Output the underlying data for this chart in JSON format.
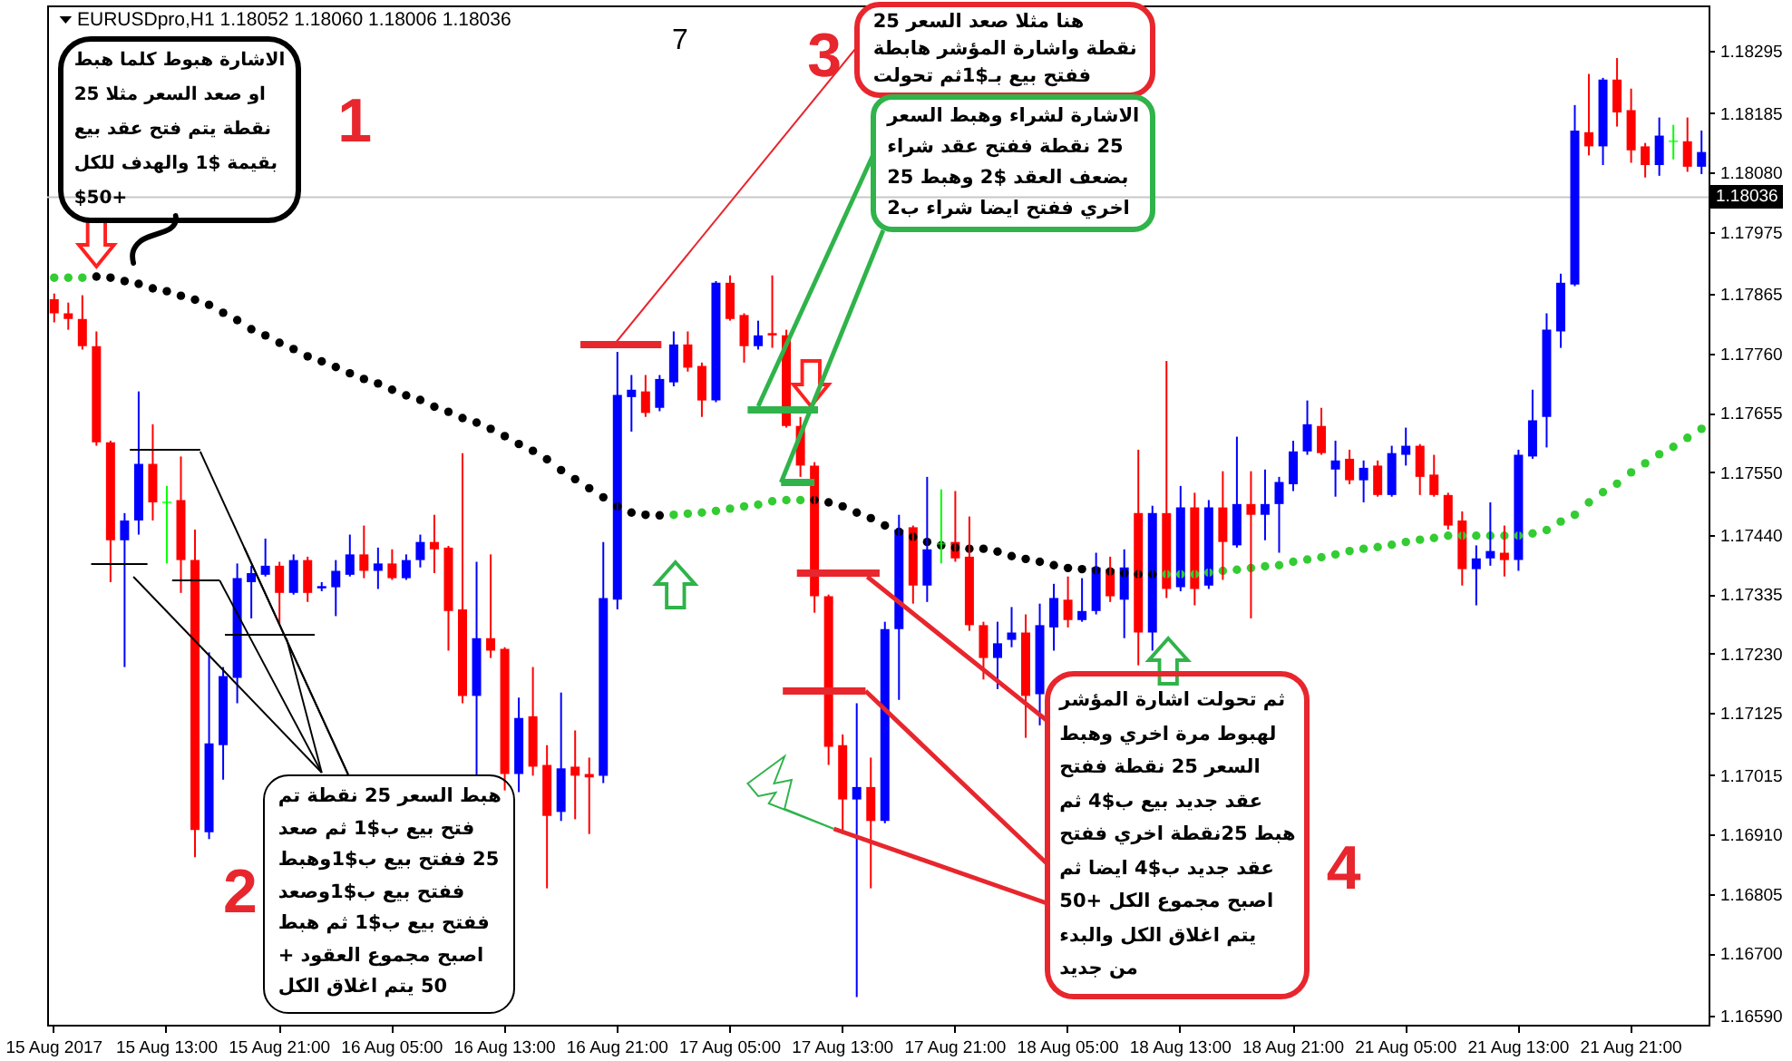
{
  "chart_data": {
    "type": "candlestick",
    "title": "EURUSDpro,H1 1.18052 1.18060 1.18006 1.18036",
    "categories": [
      "15 Aug 2017",
      null,
      null,
      null,
      null,
      null,
      null,
      null,
      "15 Aug 13:00",
      null,
      null,
      null,
      null,
      null,
      null,
      null,
      "15 Aug 21:00",
      null,
      null,
      null,
      null,
      null,
      null,
      null,
      "16 Aug 05:00",
      null,
      null,
      null,
      null,
      null,
      null,
      null,
      "16 Aug 13:00",
      null,
      null,
      null,
      null,
      null,
      null,
      null,
      "16 Aug 21:00",
      null,
      null,
      null,
      null,
      null,
      null,
      null,
      "17 Aug 05:00",
      null,
      null,
      null,
      null,
      null,
      null,
      null,
      "17 Aug 13:00",
      null,
      null,
      null,
      null,
      null,
      null,
      null,
      "17 Aug 21:00",
      null,
      null,
      null,
      null,
      null,
      null,
      null,
      "18 Aug 05:00",
      null,
      null,
      null,
      null,
      null,
      null,
      null,
      "18 Aug 13:00",
      null,
      null,
      null,
      null,
      null,
      null,
      null,
      "18 Aug 21:00",
      null,
      null,
      null,
      null,
      null,
      null,
      null,
      "21 Aug 05:00",
      null,
      null,
      null,
      null,
      null,
      null,
      null,
      "21 Aug 13:00",
      null,
      null,
      null,
      null,
      null,
      null,
      null,
      "21 Aug 21:00",
      null,
      null,
      null,
      null,
      null
    ],
    "ohlc": [
      [
        1.17856,
        1.17866,
        1.17815,
        1.17831
      ],
      [
        1.17831,
        1.1785,
        1.17802,
        1.17821
      ],
      [
        1.17821,
        1.17863,
        1.17767,
        1.17773
      ],
      [
        1.17773,
        1.17799,
        1.17597,
        1.17603
      ],
      [
        1.17603,
        1.17606,
        1.17356,
        1.1743
      ],
      [
        1.1743,
        1.17478,
        1.17206,
        1.17465
      ],
      [
        1.17465,
        1.17693,
        1.1744,
        1.17565
      ],
      [
        1.17565,
        1.17635,
        1.17465,
        1.17497
      ],
      [
        1.17497,
        1.17526,
        1.17389,
        1.17497
      ],
      [
        1.17501,
        1.17578,
        1.17337,
        1.17395
      ],
      [
        1.17395,
        1.17449,
        1.1687,
        1.16918
      ],
      [
        1.16914,
        1.17232,
        1.16902,
        1.17071
      ],
      [
        1.17068,
        1.17206,
        1.17007,
        1.1719
      ],
      [
        1.17187,
        1.17389,
        1.17142,
        1.17363
      ],
      [
        1.17356,
        1.17385,
        1.17292,
        1.17372
      ],
      [
        1.17369,
        1.17433,
        1.17366,
        1.17385
      ],
      [
        1.17385,
        1.17392,
        1.1728,
        1.17337
      ],
      [
        1.17337,
        1.17405,
        1.17334,
        1.17395
      ],
      [
        1.17395,
        1.17401,
        1.17321,
        1.17337
      ],
      [
        1.17345,
        1.17356,
        1.1734,
        1.17349
      ],
      [
        1.17347,
        1.17395,
        1.17296,
        1.17376
      ],
      [
        1.17369,
        1.1744,
        1.17366,
        1.17405
      ],
      [
        1.17405,
        1.17456,
        1.17363,
        1.17376
      ],
      [
        1.17376,
        1.17417,
        1.17344,
        1.17389
      ],
      [
        1.17389,
        1.17414,
        1.1736,
        1.17363
      ],
      [
        1.17363,
        1.17405,
        1.1736,
        1.17395
      ],
      [
        1.17395,
        1.1744,
        1.17382,
        1.17427
      ],
      [
        1.17427,
        1.17475,
        1.17372,
        1.17414
      ],
      [
        1.17417,
        1.1742,
        1.17235,
        1.17305
      ],
      [
        1.17308,
        1.17584,
        1.17142,
        1.17155
      ],
      [
        1.17155,
        1.17392,
        1.17014,
        1.17257
      ],
      [
        1.17257,
        1.17405,
        1.17222,
        1.17235
      ],
      [
        1.17238,
        1.17241,
        1.16988,
        1.17017
      ],
      [
        1.17017,
        1.17152,
        1.16985,
        1.17116
      ],
      [
        1.17119,
        1.17206,
        1.17014,
        1.1703
      ],
      [
        1.17033,
        1.17068,
        1.16815,
        1.16943
      ],
      [
        1.1695,
        1.17161,
        1.16934,
        1.17027
      ],
      [
        1.1703,
        1.17094,
        1.16937,
        1.17014
      ],
      [
        1.17017,
        1.17046,
        1.16911,
        1.17011
      ],
      [
        1.17014,
        1.17427,
        1.17001,
        1.17328
      ],
      [
        1.17325,
        1.17763,
        1.17308,
        1.17687
      ],
      [
        1.17683,
        1.17722,
        1.17622,
        1.17696
      ],
      [
        1.17693,
        1.17722,
        1.17648,
        1.17655
      ],
      [
        1.17664,
        1.17722,
        1.17658,
        1.17715
      ],
      [
        1.17709,
        1.17799,
        1.17702,
        1.17776
      ],
      [
        1.17776,
        1.17799,
        1.17728,
        1.17735
      ],
      [
        1.17738,
        1.17744,
        1.17648,
        1.17677
      ],
      [
        1.17677,
        1.17888,
        1.17674,
        1.17885
      ],
      [
        1.17885,
        1.17898,
        1.17818,
        1.17821
      ],
      [
        1.17828,
        1.17831,
        1.17744,
        1.17773
      ],
      [
        1.17773,
        1.17818,
        1.17767,
        1.17792
      ],
      [
        1.17796,
        1.17898,
        1.1777,
        1.17792
      ],
      [
        1.17792,
        1.17802,
        1.17629,
        1.17632
      ],
      [
        1.17632,
        1.17648,
        1.17542,
        1.17562
      ],
      [
        1.17562,
        1.17568,
        1.17302,
        1.17331
      ],
      [
        1.17331,
        1.17334,
        1.17033,
        1.17065
      ],
      [
        1.17068,
        1.17087,
        1.16911,
        1.16972
      ],
      [
        1.16972,
        1.17142,
        1.16623,
        1.16994
      ],
      [
        1.16994,
        1.17046,
        1.16815,
        1.16934
      ],
      [
        1.16934,
        1.17286,
        1.1693,
        1.17273
      ],
      [
        1.17273,
        1.17475,
        1.17148,
        1.17449
      ],
      [
        1.17453,
        1.17456,
        1.17318,
        1.1735
      ],
      [
        1.1735,
        1.17542,
        1.17321,
        1.17414
      ],
      [
        1.17424,
        1.1752,
        1.17389,
        1.17424
      ],
      [
        1.17427,
        1.17517,
        1.17392,
        1.17398
      ],
      [
        1.17401,
        1.17472,
        1.1727,
        1.1728
      ],
      [
        1.1728,
        1.17286,
        1.17184,
        1.17222
      ],
      [
        1.17222,
        1.17286,
        1.17167,
        1.17248
      ],
      [
        1.17254,
        1.17312,
        1.17241,
        1.17267
      ],
      [
        1.17267,
        1.17299,
        1.17081,
        1.17155
      ],
      [
        1.17158,
        1.17318,
        1.17103,
        1.1728
      ],
      [
        1.17276,
        1.17353,
        1.17235,
        1.17328
      ],
      [
        1.17325,
        1.17366,
        1.17276,
        1.17289
      ],
      [
        1.17289,
        1.17363,
        1.17286,
        1.17305
      ],
      [
        1.17305,
        1.17408,
        1.17299,
        1.17382
      ],
      [
        1.17379,
        1.17401,
        1.17321,
        1.17331
      ],
      [
        1.17325,
        1.17414,
        1.17257,
        1.17382
      ],
      [
        1.17478,
        1.1759,
        1.17209,
        1.17267
      ],
      [
        1.17267,
        1.17491,
        1.17235,
        1.17478
      ],
      [
        1.17478,
        1.17747,
        1.17328,
        1.17344
      ],
      [
        1.17347,
        1.17526,
        1.1734,
        1.17488
      ],
      [
        1.17488,
        1.17514,
        1.17315,
        1.17344
      ],
      [
        1.1735,
        1.17501,
        1.17344,
        1.17488
      ],
      [
        1.17488,
        1.17552,
        1.1736,
        1.17427
      ],
      [
        1.17421,
        1.17613,
        1.17417,
        1.17494
      ],
      [
        1.17494,
        1.17552,
        1.17292,
        1.17475
      ],
      [
        1.17475,
        1.17555,
        1.1743,
        1.17494
      ],
      [
        1.17494,
        1.17542,
        1.17408,
        1.17533
      ],
      [
        1.17529,
        1.17606,
        1.17517,
        1.17587
      ],
      [
        1.17587,
        1.17677,
        1.17581,
        1.17635
      ],
      [
        1.17632,
        1.17664,
        1.17581,
        1.17584
      ],
      [
        1.17555,
        1.17606,
        1.17507,
        1.17571
      ],
      [
        1.17574,
        1.1759,
        1.17529,
        1.17536
      ],
      [
        1.17536,
        1.17571,
        1.17497,
        1.17558
      ],
      [
        1.17562,
        1.17571,
        1.17507,
        1.1751
      ],
      [
        1.1751,
        1.17597,
        1.17507,
        1.17584
      ],
      [
        1.17581,
        1.17629,
        1.17562,
        1.17597
      ],
      [
        1.17597,
        1.176,
        1.1751,
        1.17542
      ],
      [
        1.17546,
        1.17581,
        1.17507,
        1.1751
      ],
      [
        1.1751,
        1.17514,
        1.17449,
        1.17456
      ],
      [
        1.17465,
        1.17481,
        1.1735,
        1.17379
      ],
      [
        1.17379,
        1.17421,
        1.17315,
        1.17398
      ],
      [
        1.17398,
        1.17497,
        1.17385,
        1.17411
      ],
      [
        1.17408,
        1.17456,
        1.17366,
        1.17395
      ],
      [
        1.17395,
        1.1759,
        1.17376,
        1.17581
      ],
      [
        1.17578,
        1.17696,
        1.17574,
        1.17642
      ],
      [
        1.17648,
        1.17831,
        1.17594,
        1.17802
      ],
      [
        1.17799,
        1.17901,
        1.1777,
        1.17885
      ],
      [
        1.17882,
        1.18199,
        1.17879,
        1.18154
      ],
      [
        1.18151,
        1.18254,
        1.1811,
        1.18126
      ],
      [
        1.18126,
        1.18247,
        1.18093,
        1.18244
      ],
      [
        1.18244,
        1.18282,
        1.18161,
        1.18186
      ],
      [
        1.1819,
        1.18228,
        1.18097,
        1.18119
      ],
      [
        1.18126,
        1.18132,
        1.18071,
        1.18093
      ],
      [
        1.18093,
        1.18177,
        1.18074,
        1.18145
      ],
      [
        1.18135,
        1.18164,
        1.18103,
        1.18135
      ],
      [
        1.18135,
        1.18177,
        1.18081,
        1.1809
      ],
      [
        1.1809,
        1.18154,
        1.18077,
        1.18116
      ]
    ],
    "colors": [
      "#ff0000",
      "#ff0000",
      "#ff0000",
      "#ff0000",
      "#ff0000",
      "#0000ff",
      "#0000ff",
      "#ff0000",
      "#00ff00",
      "#ff0000",
      "#ff0000",
      "#0000ff",
      "#0000ff",
      "#0000ff",
      "#0000ff",
      "#0000ff",
      "#ff0000",
      "#0000ff",
      "#ff0000",
      "#0000ff",
      "#0000ff",
      "#0000ff",
      "#ff0000",
      "#0000ff",
      "#ff0000",
      "#0000ff",
      "#0000ff",
      "#ff0000",
      "#ff0000",
      "#ff0000",
      "#0000ff",
      "#ff0000",
      "#ff0000",
      "#0000ff",
      "#ff0000",
      "#ff0000",
      "#0000ff",
      "#ff0000",
      "#ff0000",
      "#0000ff",
      "#0000ff",
      "#0000ff",
      "#ff0000",
      "#0000ff",
      "#0000ff",
      "#ff0000",
      "#ff0000",
      "#0000ff",
      "#ff0000",
      "#ff0000",
      "#0000ff",
      "#ff0000",
      "#ff0000",
      "#ff0000",
      "#ff0000",
      "#ff0000",
      "#ff0000",
      "#0000ff",
      "#ff0000",
      "#0000ff",
      "#0000ff",
      "#ff0000",
      "#0000ff",
      "#00ff00",
      "#ff0000",
      "#ff0000",
      "#ff0000",
      "#0000ff",
      "#0000ff",
      "#ff0000",
      "#0000ff",
      "#0000ff",
      "#ff0000",
      "#0000ff",
      "#0000ff",
      "#ff0000",
      "#0000ff",
      "#ff0000",
      "#0000ff",
      "#ff0000",
      "#0000ff",
      "#ff0000",
      "#0000ff",
      "#ff0000",
      "#0000ff",
      "#ff0000",
      "#0000ff",
      "#0000ff",
      "#0000ff",
      "#0000ff",
      "#ff0000",
      "#0000ff",
      "#ff0000",
      "#0000ff",
      "#ff0000",
      "#0000ff",
      "#0000ff",
      "#ff0000",
      "#ff0000",
      "#ff0000",
      "#ff0000",
      "#0000ff",
      "#0000ff",
      "#ff0000",
      "#0000ff",
      "#0000ff",
      "#0000ff",
      "#0000ff",
      "#0000ff",
      "#ff0000",
      "#0000ff",
      "#ff0000",
      "#ff0000",
      "#ff0000",
      "#0000ff",
      "#00ff00",
      "#ff0000",
      "#0000ff"
    ],
    "series": [
      {
        "type": "scatter",
        "color": "#000000",
        "values": [
          null,
          null,
          null,
          1.17896,
          1.17894,
          1.17888,
          1.17883,
          1.17875,
          1.1787,
          1.17862,
          1.17855,
          1.17846,
          1.17832,
          1.17819,
          1.17803,
          1.17792,
          1.17779,
          1.17768,
          1.17755,
          1.17746,
          1.17736,
          1.17725,
          1.17715,
          1.17707,
          1.17696,
          1.17686,
          1.17678,
          1.17666,
          1.17657,
          1.17646,
          1.17638,
          1.17627,
          1.17614,
          1.176,
          1.17588,
          1.17573,
          1.17554,
          1.17538,
          1.17522,
          1.17506,
          1.1749,
          1.17479,
          1.17475,
          1.17474,
          null,
          null,
          null,
          null,
          null,
          null,
          null,
          null,
          null,
          null,
          1.17501,
          1.17497,
          1.1749,
          1.17479,
          1.17469,
          1.17456,
          1.17445,
          1.17436,
          1.17427,
          1.17421,
          1.17417,
          1.17415,
          1.17415,
          1.1741,
          1.17402,
          1.17397,
          1.17392,
          1.17386,
          1.17381,
          1.17379,
          1.17377,
          1.17375,
          1.17372,
          1.1737,
          1.1737,
          null,
          null,
          null,
          null,
          null,
          null,
          null,
          null,
          null,
          null,
          null,
          null,
          null,
          null,
          null,
          null,
          null,
          null,
          null,
          null,
          null,
          null,
          null,
          null,
          null,
          null,
          null,
          null,
          null,
          null,
          null,
          null,
          null,
          null,
          null,
          null,
          null,
          null,
          null
        ]
      },
      {
        "type": "scatter",
        "color": "#33cc33",
        "values": [
          1.17894,
          1.17894,
          1.17894,
          null,
          null,
          null,
          null,
          null,
          null,
          null,
          null,
          null,
          null,
          null,
          null,
          null,
          null,
          null,
          null,
          null,
          null,
          null,
          null,
          null,
          null,
          null,
          null,
          null,
          null,
          null,
          null,
          null,
          null,
          null,
          null,
          null,
          null,
          null,
          null,
          null,
          null,
          null,
          null,
          null,
          1.17475,
          1.17477,
          1.17479,
          1.17482,
          1.17486,
          1.1749,
          1.17493,
          1.17499,
          1.17501,
          1.17501,
          null,
          null,
          null,
          null,
          null,
          null,
          null,
          null,
          null,
          null,
          null,
          null,
          null,
          null,
          null,
          null,
          null,
          null,
          null,
          null,
          null,
          null,
          null,
          null,
          null,
          1.1737,
          1.1737,
          1.1737,
          1.17373,
          1.17376,
          1.17378,
          1.17381,
          1.17384,
          1.17386,
          1.17392,
          1.17396,
          1.174,
          1.17405,
          1.17411,
          1.17415,
          1.17418,
          1.17422,
          1.17427,
          1.17431,
          1.17434,
          1.17438,
          1.17438,
          1.17438,
          1.17438,
          1.17438,
          1.17438,
          1.17442,
          1.17448,
          1.17463,
          1.17475,
          1.17497,
          1.17515,
          1.1753,
          1.1755,
          1.17566,
          1.17582,
          1.17595,
          1.17611,
          1.17627
        ]
      }
    ],
    "marker": "circle",
    "ylim": [
      1.16574,
      1.18375
    ],
    "yticks": [
      {
        "value": 1.1659,
        "label": "1.16590"
      },
      {
        "value": 1.167,
        "label": "1.16700"
      },
      1.16805,
      {
        "value": 1.1691,
        "label": "1.16910"
      },
      1.17015,
      1.17125,
      {
        "value": 1.1723,
        "label": "1.17230"
      },
      1.17335,
      {
        "value": 1.1744,
        "label": "1.17440"
      },
      {
        "value": 1.1755,
        "label": "1.17550"
      },
      1.17655,
      {
        "value": 1.1776,
        "label": "1.17760"
      },
      1.17865,
      1.17975,
      {
        "value": 1.1808,
        "label": "1.18080"
      },
      1.18185,
      1.18295
    ],
    "ref_lines": [
      {
        "axis": "y",
        "value": 1.18036,
        "label": "1.18036",
        "color": "#c8c8c8"
      }
    ],
    "annotations": [
      "الاشارة هبوط كلما هبط\nاو صعد السعر مثلا 25\nنقطة يتم فتح عقد بيع\nبقيمة $1 والهدف للكل\n$50+",
      "1",
      "7",
      "هنا مثلا صعد السعر 25\nنقطة واشارة المؤشر هابطة\nففتح بيع بـ$1ثم تحولت",
      "الاشارة لشراء وهبط السعر\n25 نقطة ففتح عقد شراء\nبضعف العقد $2 وهبط 25\nاخري ففتح ايضا شراء ب2",
      "3",
      "هبط السعر 25 نقطة تم\nفتح بيع ب$1 ثم صعد\n25 ففتح بيع ب$1وهبط\nففتح بيع ب$1وصعد\nففتح بيع ب$1 ثم هبط\nاصبح مجموع العقود +\n50 يتم اغلاق الكل",
      "2",
      "ثم تحولت اشارة المؤشر\nلهبوط مرة اخري وهبط\nالسعر 25 نقطة ففتح\nعقد جديد بيع ب$4 ثم\nهبط 25نقطة اخري ففتح\nعقد جديد ب$4 ايضا ثم\nاصبح مجموع الكل +50\nيتم اغلاق الكل والبدء\nمن جديد",
      "4"
    ]
  }
}
